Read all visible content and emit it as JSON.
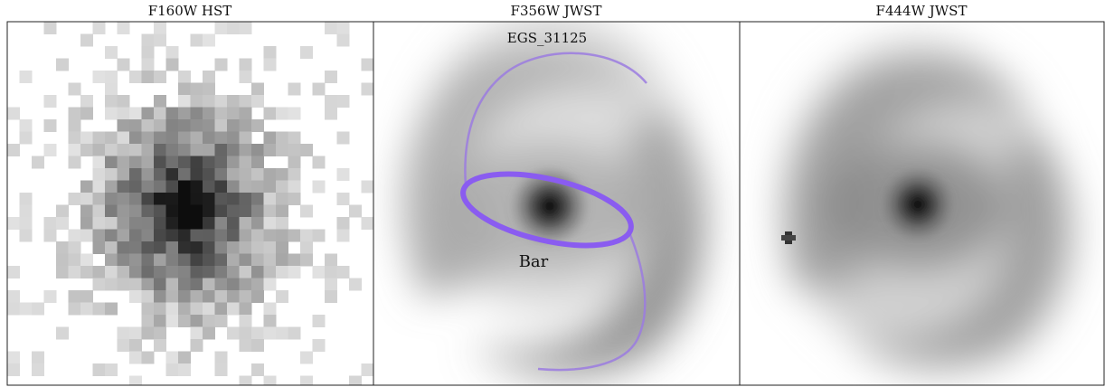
{
  "panels": [
    {
      "title": "F160W HST"
    },
    {
      "title": "F356W JWST",
      "annotations": [
        "EGS_31125",
        "Bar"
      ]
    },
    {
      "title": "F444W JWST"
    }
  ]
}
